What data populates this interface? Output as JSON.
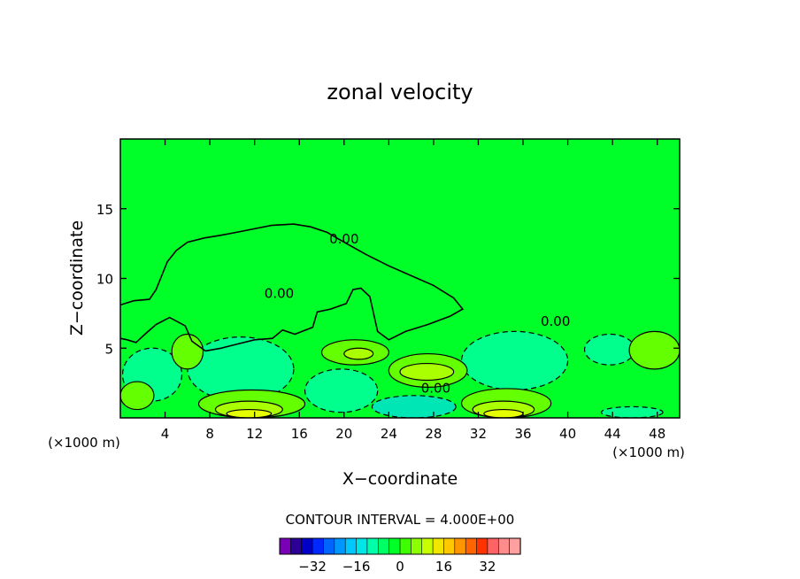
{
  "chart_data": {
    "type": "heatmap",
    "title": "zonal velocity",
    "xlabel": "X−coordinate",
    "ylabel": "Z−coordinate",
    "x_unit_left": "(×1000 m)",
    "x_unit_right": "(×1000 m)",
    "xlim": [
      0,
      50
    ],
    "ylim": [
      0,
      20
    ],
    "xticks": [
      4,
      8,
      12,
      16,
      20,
      24,
      28,
      32,
      36,
      40,
      44,
      48
    ],
    "yticks": [
      5,
      10,
      15
    ],
    "field_background_value": 0,
    "contour_labels": [
      {
        "text": "0.00",
        "x": 20.0,
        "y": 12.5
      },
      {
        "text": "0.00",
        "x": 14.2,
        "y": 8.6
      },
      {
        "text": "0.00",
        "x": 38.9,
        "y": 6.6
      },
      {
        "text": "0.00",
        "x": 28.2,
        "y": 1.8
      }
    ],
    "contour_interval_text": "CONTOUR INTERVAL = 4.000E+00",
    "colorbar": {
      "levels": [
        -36,
        -32,
        -28,
        -24,
        -20,
        -16,
        -12,
        -8,
        -4,
        0,
        4,
        8,
        12,
        16,
        20,
        24,
        28,
        32,
        36
      ],
      "colors": [
        "#7a00b8",
        "#2a0096",
        "#0000c8",
        "#0028ff",
        "#0064ff",
        "#0096ff",
        "#00c8ff",
        "#00e6e6",
        "#00ffa8",
        "#00ff64",
        "#00ff28",
        "#3cff00",
        "#8cff00",
        "#c8ff00",
        "#f0e600",
        "#ffc800",
        "#ff9600",
        "#ff6400",
        "#ff3200",
        "#ff6464",
        "#ff8c8c",
        "#ffa0a0"
      ],
      "tick_labels": [
        "−32",
        "−16",
        "0",
        "16",
        "32"
      ],
      "tick_values": [
        -32,
        -16,
        0,
        16,
        32
      ]
    },
    "colors": {
      "neg8": "#00e6b4",
      "neg4": "#00ff8c",
      "zero": "#00ff28",
      "pos4": "#64ff00",
      "pos8": "#aaff00",
      "pos12": "#e6ff00",
      "line": "#000000"
    },
    "regions": [
      {
        "level": "neg4",
        "name": "neg-cell-left",
        "x": [
          0.2,
          5.5
        ],
        "y": [
          1.2,
          5.0
        ]
      },
      {
        "level": "neg8",
        "name": "neg-cell-8-12",
        "x": [
          7.8,
          14.5
        ],
        "y": [
          2.0,
          5.5
        ]
      },
      {
        "level": "neg4",
        "name": "neg-cell-8-12-outer",
        "x": [
          6.0,
          15.5
        ],
        "y": [
          1.2,
          5.8
        ]
      },
      {
        "level": "neg4",
        "name": "neg-cell-18-24",
        "x": [
          16.5,
          23.0
        ],
        "y": [
          0.4,
          3.5
        ]
      },
      {
        "level": "neg8",
        "name": "neg-cell-24-30",
        "x": [
          22.5,
          30.0
        ],
        "y": [
          0.0,
          1.6
        ]
      },
      {
        "level": "neg8",
        "name": "neg-cell-32-38",
        "x": [
          31.5,
          38.5
        ],
        "y": [
          3.5,
          5.5
        ]
      },
      {
        "level": "neg4",
        "name": "neg-cell-32-40",
        "x": [
          30.5,
          40.0
        ],
        "y": [
          2.0,
          6.2
        ]
      },
      {
        "level": "neg4",
        "name": "neg-cell-42-46",
        "x": [
          41.5,
          46.0
        ],
        "y": [
          3.8,
          6.0
        ]
      },
      {
        "level": "pos4",
        "name": "pos-cell-left",
        "x": [
          0.0,
          3.0
        ],
        "y": [
          0.6,
          2.6
        ]
      },
      {
        "level": "pos4",
        "name": "pos-cell-5-7",
        "x": [
          4.6,
          7.4
        ],
        "y": [
          3.5,
          6.0
        ]
      },
      {
        "level": "pos4",
        "name": "pos-cell-18-24",
        "x": [
          18.0,
          24.0
        ],
        "y": [
          3.8,
          5.6
        ]
      },
      {
        "level": "pos8",
        "name": "pos-cell-21",
        "x": [
          20.0,
          22.6
        ],
        "y": [
          4.2,
          5.0
        ]
      },
      {
        "level": "pos4",
        "name": "pos-cell-24-31",
        "x": [
          24.0,
          31.0
        ],
        "y": [
          2.2,
          4.6
        ]
      },
      {
        "level": "pos8",
        "name": "pos-cell-26-30",
        "x": [
          25.0,
          29.8
        ],
        "y": [
          2.7,
          3.9
        ]
      },
      {
        "level": "pos4",
        "name": "pos-cell-46-50",
        "x": [
          45.5,
          50.0
        ],
        "y": [
          3.5,
          6.2
        ]
      },
      {
        "level": "pos4",
        "name": "pos-cell-bottom-8-16",
        "x": [
          7.0,
          16.5
        ],
        "y": [
          0.0,
          2.0
        ]
      },
      {
        "level": "pos8",
        "name": "pos-cell-bottom-9-14",
        "x": [
          8.5,
          14.5
        ],
        "y": [
          0.0,
          1.2
        ]
      },
      {
        "level": "pos12",
        "name": "pos-cell-bottom-10-13",
        "x": [
          9.5,
          13.5
        ],
        "y": [
          0.0,
          0.6
        ]
      },
      {
        "level": "pos4",
        "name": "pos-cell-bottom-31-38",
        "x": [
          30.5,
          38.5
        ],
        "y": [
          0.0,
          2.1
        ]
      },
      {
        "level": "pos8",
        "name": "pos-cell-bottom-32-37",
        "x": [
          31.5,
          37.0
        ],
        "y": [
          0.0,
          1.2
        ]
      },
      {
        "level": "pos12",
        "name": "pos-cell-bottom-33-36",
        "x": [
          32.5,
          36.0
        ],
        "y": [
          0.0,
          0.6
        ]
      },
      {
        "level": "neg4",
        "name": "neg-cell-bottom-43-48",
        "x": [
          43.0,
          48.5
        ],
        "y": [
          0.0,
          0.8
        ]
      }
    ],
    "zero_line": [
      [
        0.0,
        8.1
      ],
      [
        1.2,
        8.4
      ],
      [
        2.6,
        8.5
      ],
      [
        3.2,
        9.2
      ],
      [
        3.6,
        10.0
      ],
      [
        4.2,
        11.2
      ],
      [
        5.0,
        12.0
      ],
      [
        6.0,
        12.6
      ],
      [
        7.5,
        12.9
      ],
      [
        9.0,
        13.1
      ],
      [
        11.0,
        13.4
      ],
      [
        13.5,
        13.8
      ],
      [
        15.5,
        13.9
      ],
      [
        17.0,
        13.7
      ],
      [
        18.5,
        13.3
      ],
      [
        20.0,
        12.6
      ],
      [
        22.0,
        11.7
      ],
      [
        24.0,
        10.9
      ],
      [
        26.0,
        10.2
      ],
      [
        28.0,
        9.5
      ],
      [
        29.8,
        8.6
      ],
      [
        30.6,
        7.8
      ],
      [
        29.5,
        7.3
      ],
      [
        27.5,
        6.7
      ],
      [
        25.5,
        6.2
      ],
      [
        24.0,
        5.6
      ],
      [
        23.0,
        6.2
      ],
      [
        22.3,
        8.7
      ],
      [
        21.5,
        9.3
      ],
      [
        20.8,
        9.2
      ],
      [
        20.2,
        8.2
      ],
      [
        18.8,
        7.8
      ],
      [
        17.6,
        7.6
      ],
      [
        17.2,
        6.5
      ],
      [
        15.6,
        6.0
      ],
      [
        14.5,
        6.3
      ],
      [
        13.6,
        5.7
      ],
      [
        12.0,
        5.6
      ],
      [
        10.5,
        5.3
      ],
      [
        9.0,
        5.0
      ],
      [
        7.6,
        4.8
      ],
      [
        6.4,
        5.5
      ],
      [
        5.8,
        6.6
      ],
      [
        4.4,
        7.2
      ],
      [
        3.2,
        6.7
      ],
      [
        2.2,
        6.0
      ],
      [
        1.4,
        5.4
      ],
      [
        0.6,
        5.6
      ],
      [
        0.0,
        5.7
      ]
    ]
  }
}
